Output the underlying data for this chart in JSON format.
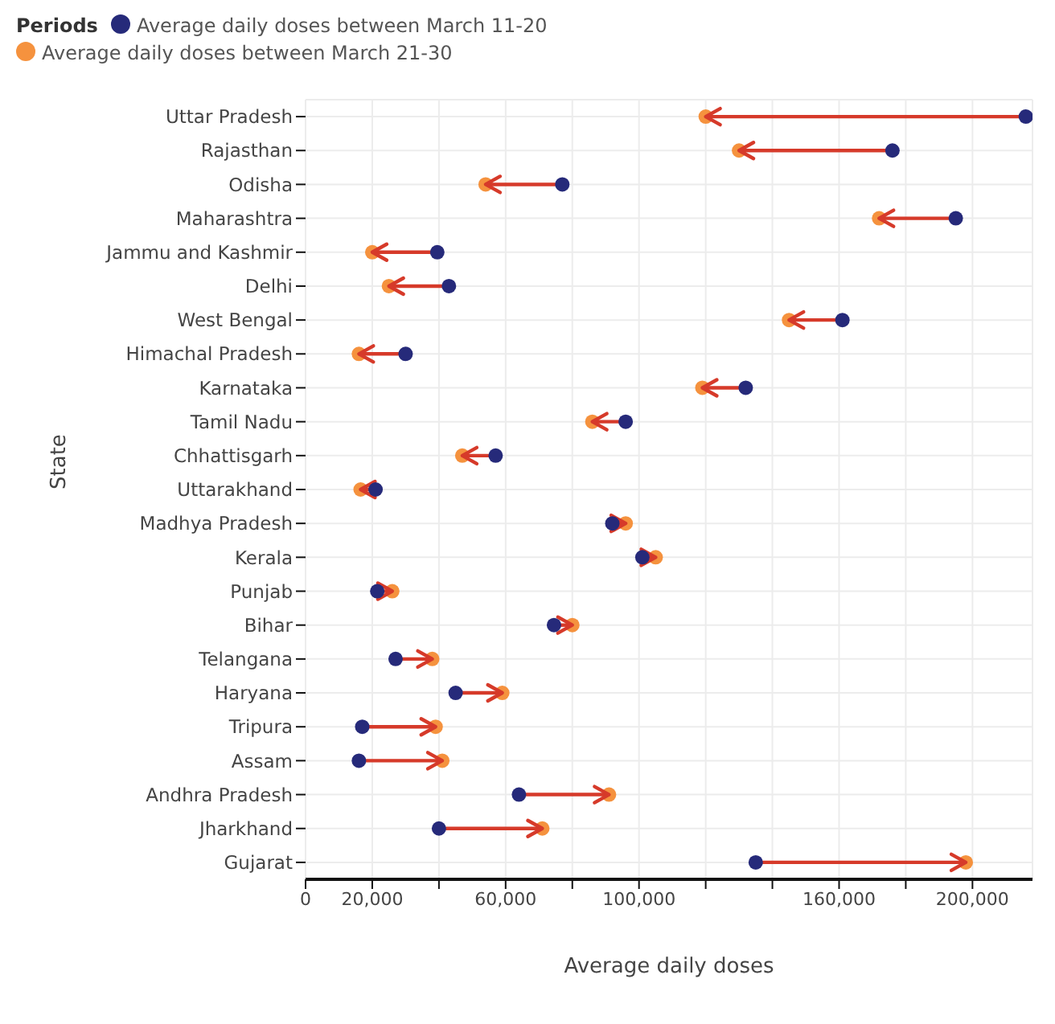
{
  "chart_data": {
    "type": "scatter",
    "legend_title": "Periods",
    "xlabel": "Average daily doses",
    "ylabel": "State",
    "categories": [
      "Uttar Pradesh",
      "Rajasthan",
      "Odisha",
      "Maharashtra",
      "Jammu and Kashmir",
      "Delhi",
      "West Bengal",
      "Himachal Pradesh",
      "Karnataka",
      "Tamil Nadu",
      "Chhattisgarh",
      "Uttarakhand",
      "Madhya Pradesh",
      "Kerala",
      "Punjab",
      "Bihar",
      "Telangana",
      "Haryana",
      "Tripura",
      "Assam",
      "Andhra Pradesh",
      "Jharkhand",
      "Gujarat"
    ],
    "series": [
      {
        "name": "Average daily doses between March 11-20",
        "color": "#262a7a",
        "values": [
          216000,
          176000,
          77000,
          195000,
          39500,
          43000,
          161000,
          30000,
          132000,
          96000,
          57000,
          21000,
          92000,
          101000,
          21500,
          74500,
          27000,
          45000,
          17000,
          16000,
          64000,
          40000,
          135000
        ]
      },
      {
        "name": "Average daily doses between March 21-30",
        "color": "#f5923e",
        "values": [
          120000,
          130000,
          54000,
          172000,
          20000,
          25000,
          145000,
          16000,
          119000,
          86000,
          47000,
          16500,
          96000,
          105000,
          26000,
          80000,
          38000,
          59000,
          39000,
          41000,
          91000,
          71000,
          198000
        ]
      }
    ],
    "xlim": [
      0,
      218000
    ],
    "orientation": "horizontal",
    "xticks": [
      {
        "value": 0,
        "label": "0"
      },
      {
        "value": 20000,
        "label": "20,000"
      },
      {
        "value": 40000,
        "label": null
      },
      {
        "value": 60000,
        "label": "60,000"
      },
      {
        "value": 80000,
        "label": null
      },
      {
        "value": 100000,
        "label": "100,000"
      },
      {
        "value": 120000,
        "label": null
      },
      {
        "value": 140000,
        "label": null
      },
      {
        "value": 160000,
        "label": "160,000"
      },
      {
        "value": 180000,
        "label": null
      },
      {
        "value": 200000,
        "label": "200,000"
      }
    ],
    "grid": true,
    "legend": "top left",
    "marker": "circle"
  }
}
